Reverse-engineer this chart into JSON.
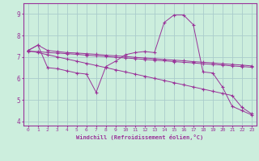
{
  "xlabel": "Windchill (Refroidissement éolien,°C)",
  "bg_color": "#cceedd",
  "line_color": "#993399",
  "grid_color": "#aacccc",
  "xlim": [
    -0.5,
    23.5
  ],
  "ylim": [
    3.8,
    9.5
  ],
  "xticks": [
    0,
    1,
    2,
    3,
    4,
    5,
    6,
    7,
    8,
    9,
    10,
    11,
    12,
    13,
    14,
    15,
    16,
    17,
    18,
    19,
    20,
    21,
    22,
    23
  ],
  "yticks": [
    4,
    5,
    6,
    7,
    8,
    9
  ],
  "series_flat1_x": [
    0,
    1,
    2,
    3,
    4,
    5,
    6,
    7,
    8,
    9,
    10,
    11,
    12,
    13,
    14,
    15,
    16,
    17,
    18,
    19,
    20,
    21,
    22,
    23
  ],
  "series_flat1_y": [
    7.3,
    7.55,
    7.3,
    7.25,
    7.2,
    7.18,
    7.15,
    7.12,
    7.08,
    7.05,
    7.02,
    6.98,
    6.95,
    6.92,
    6.88,
    6.85,
    6.82,
    6.78,
    6.75,
    6.72,
    6.68,
    6.65,
    6.62,
    6.58
  ],
  "series_flat2_x": [
    0,
    1,
    2,
    3,
    4,
    5,
    6,
    7,
    8,
    9,
    10,
    11,
    12,
    13,
    14,
    15,
    16,
    17,
    18,
    19,
    20,
    21,
    22,
    23
  ],
  "series_flat2_y": [
    7.25,
    7.25,
    7.2,
    7.18,
    7.15,
    7.12,
    7.08,
    7.05,
    7.02,
    6.98,
    6.95,
    6.92,
    6.88,
    6.85,
    6.82,
    6.78,
    6.75,
    6.72,
    6.68,
    6.65,
    6.62,
    6.58,
    6.55,
    6.52
  ],
  "series_diag_x": [
    0,
    1,
    2,
    3,
    4,
    5,
    6,
    7,
    8,
    9,
    10,
    11,
    12,
    13,
    14,
    15,
    16,
    17,
    18,
    19,
    20,
    21,
    22,
    23
  ],
  "series_diag_y": [
    7.3,
    7.2,
    7.1,
    7.0,
    6.9,
    6.8,
    6.7,
    6.6,
    6.5,
    6.4,
    6.3,
    6.2,
    6.1,
    6.0,
    5.9,
    5.8,
    5.7,
    5.6,
    5.5,
    5.4,
    5.3,
    5.2,
    4.65,
    4.35
  ],
  "series_jagged_x": [
    0,
    1,
    2,
    3,
    4,
    5,
    6,
    7,
    8,
    9,
    10,
    11,
    12,
    13,
    14,
    15,
    16,
    17,
    18,
    19,
    20,
    21,
    22,
    23
  ],
  "series_jagged_y": [
    7.3,
    7.55,
    6.5,
    6.45,
    6.35,
    6.25,
    6.2,
    5.35,
    6.55,
    6.8,
    7.1,
    7.2,
    7.25,
    7.2,
    8.6,
    8.95,
    8.95,
    8.5,
    6.3,
    6.25,
    5.6,
    4.7,
    4.5,
    4.3
  ]
}
